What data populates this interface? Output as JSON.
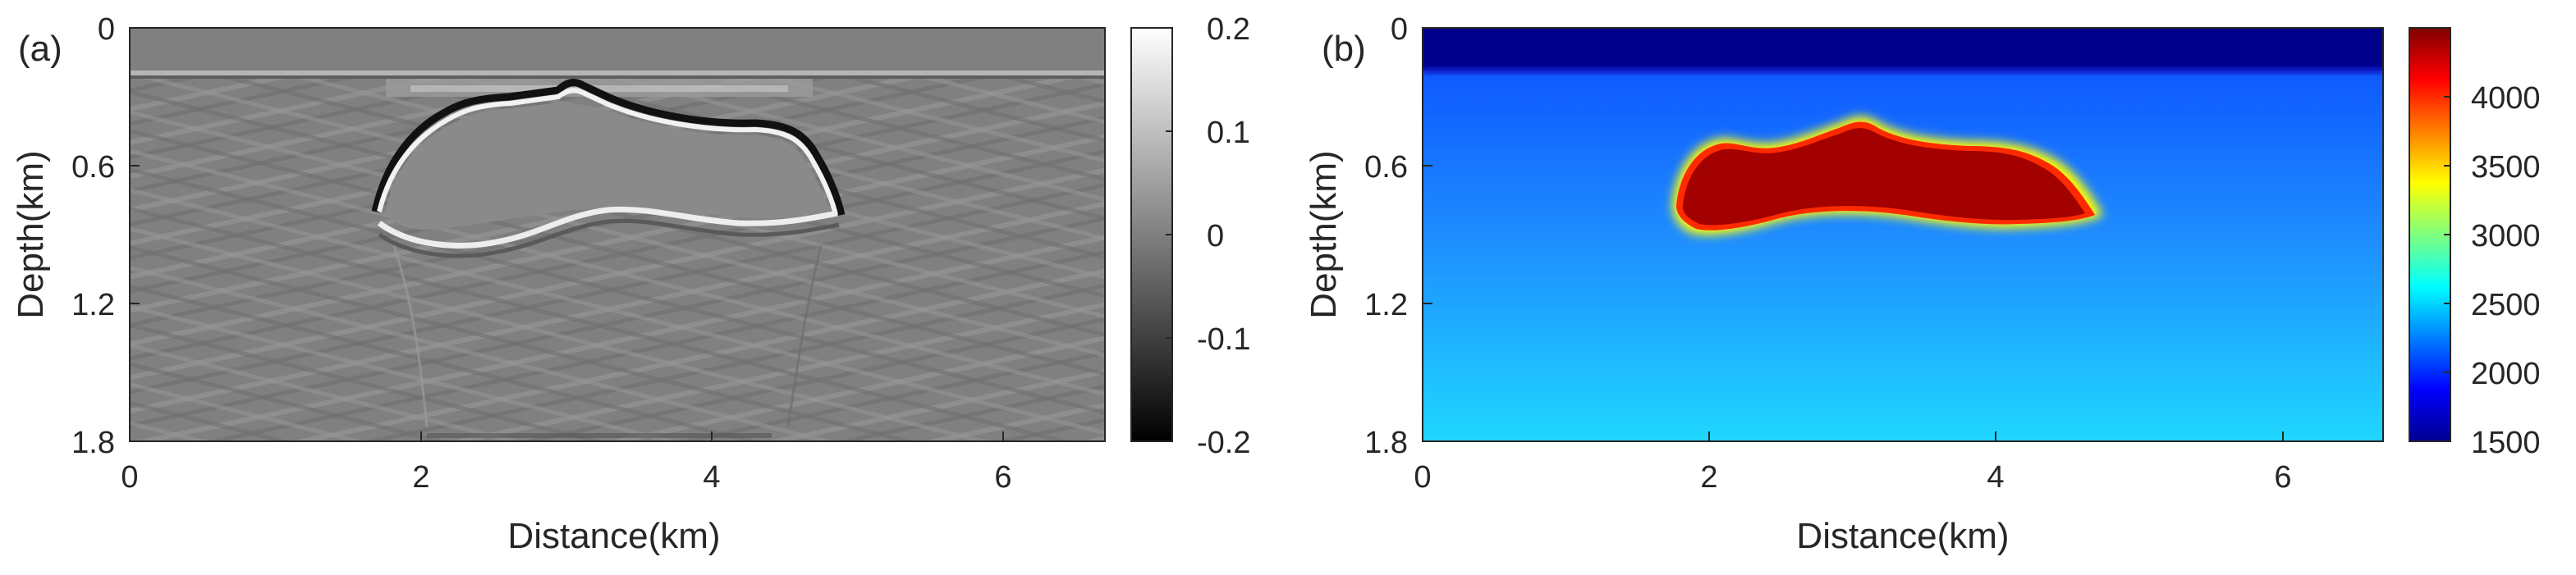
{
  "figure": {
    "panels": [
      {
        "panel_label": "(a)",
        "type": "heatmap",
        "colormap": "gray",
        "xlabel": "Distance(km)",
        "ylabel": "Depth(km)",
        "xticks": [
          "0",
          "2",
          "4",
          "6"
        ],
        "yticks": [
          "0",
          "0.6",
          "1.2",
          "1.8"
        ],
        "colorbar_ticks": [
          "0.2",
          "0.1",
          "0",
          "-0.1",
          "-0.2"
        ]
      },
      {
        "panel_label": "(b)",
        "type": "heatmap",
        "colormap": "jet",
        "xlabel": "Distance(km)",
        "ylabel": "Depth(km)",
        "xticks": [
          "0",
          "2",
          "4",
          "6"
        ],
        "yticks": [
          "0",
          "0.6",
          "1.2",
          "1.8"
        ],
        "colorbar_ticks": [
          "4000",
          "3500",
          "3000",
          "2500",
          "2000",
          "1500"
        ]
      }
    ]
  },
  "chart_data": [
    {
      "type": "heatmap",
      "panel": "(a)",
      "xlabel": "Distance(km)",
      "ylabel": "Depth(km)",
      "xlim": [
        0,
        6.7
      ],
      "ylim": [
        0,
        1.8
      ],
      "y_reversed": true,
      "xticks": [
        0,
        2,
        4,
        6
      ],
      "yticks": [
        0,
        0.6,
        1.2,
        1.8
      ],
      "colorbar": {
        "colormap": "gray",
        "range": [
          -0.2,
          0.2
        ],
        "ticks": [
          0.2,
          0.1,
          0,
          -0.1,
          -0.2
        ]
      },
      "features": {
        "water_layer_bottom_depth": 0.2,
        "salt_top_boundary": [
          [
            1.7,
            0.78
          ],
          [
            1.9,
            0.5
          ],
          [
            2.2,
            0.36
          ],
          [
            2.5,
            0.33
          ],
          [
            2.8,
            0.32
          ],
          [
            3.0,
            0.26
          ],
          [
            3.2,
            0.38
          ],
          [
            3.6,
            0.44
          ],
          [
            4.0,
            0.45
          ],
          [
            4.4,
            0.5
          ],
          [
            4.7,
            0.64
          ],
          [
            4.9,
            0.78
          ]
        ],
        "salt_bottom_boundary": [
          [
            1.8,
            0.9
          ],
          [
            2.2,
            0.98
          ],
          [
            2.6,
            0.97
          ],
          [
            3.0,
            0.86
          ],
          [
            3.4,
            0.82
          ],
          [
            3.8,
            0.87
          ],
          [
            4.2,
            0.88
          ],
          [
            4.6,
            0.86
          ],
          [
            4.9,
            0.8
          ]
        ]
      }
    },
    {
      "type": "heatmap",
      "panel": "(b)",
      "xlabel": "Distance(km)",
      "ylabel": "Depth(km)",
      "xlim": [
        0,
        6.7
      ],
      "ylim": [
        0,
        1.8
      ],
      "y_reversed": true,
      "xticks": [
        0,
        2,
        4,
        6
      ],
      "yticks": [
        0,
        0.6,
        1.2,
        1.8
      ],
      "colorbar": {
        "colormap": "jet",
        "range": [
          1500,
          4500
        ],
        "ticks": [
          4000,
          3500,
          3000,
          2500,
          2000,
          1500
        ]
      },
      "features": {
        "water_velocity": 1500,
        "water_layer_bottom_depth": 0.2,
        "sediment_velocity_top": 1900,
        "sediment_velocity_bottom": 2300,
        "salt_velocity": 4500,
        "salt_body_outline": [
          [
            1.7,
            0.75
          ],
          [
            1.85,
            0.5
          ],
          [
            2.1,
            0.4
          ],
          [
            2.5,
            0.45
          ],
          [
            2.8,
            0.4
          ],
          [
            3.0,
            0.34
          ],
          [
            3.2,
            0.42
          ],
          [
            3.6,
            0.48
          ],
          [
            4.0,
            0.5
          ],
          [
            4.4,
            0.55
          ],
          [
            4.7,
            0.72
          ],
          [
            4.75,
            0.8
          ],
          [
            4.5,
            0.85
          ],
          [
            4.0,
            0.86
          ],
          [
            3.6,
            0.8
          ],
          [
            3.0,
            0.78
          ],
          [
            2.5,
            0.86
          ],
          [
            2.2,
            0.9
          ],
          [
            1.9,
            0.88
          ]
        ]
      }
    }
  ]
}
